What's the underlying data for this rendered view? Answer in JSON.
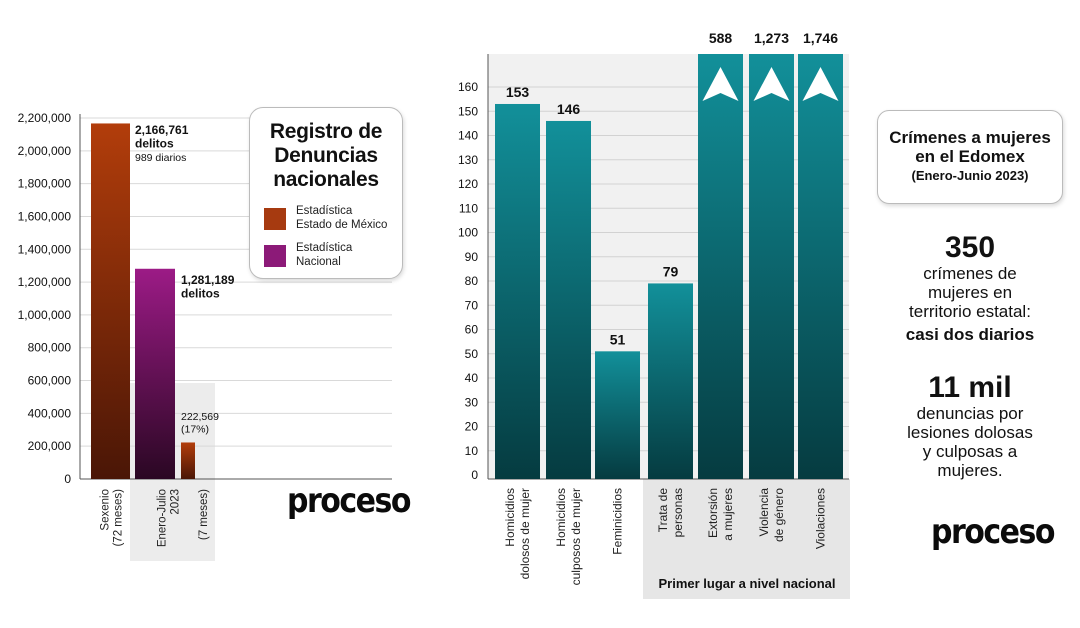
{
  "legend": {
    "title_lines": [
      "Registro de",
      "Denuncias",
      "nacionales"
    ],
    "items": [
      {
        "label_lines": [
          "Estadística",
          "Estado de México"
        ],
        "color": "#a63a10"
      },
      {
        "label_lines": [
          "Estadística",
          "Nacional"
        ],
        "color": "#8c1a78"
      }
    ]
  },
  "info_box": {
    "title_lines": [
      "Crímenes a mujeres",
      "en el Edomex"
    ],
    "subtitle": "(Enero-Junio 2023)"
  },
  "stats": [
    {
      "big": "350",
      "text_lines": [
        "crímenes de",
        "mujeres en",
        "territorio estatal:"
      ],
      "strong": "casi dos diarios"
    },
    {
      "big": "11 mil",
      "text_lines": [
        "denuncias por",
        "lesiones dolosas",
        "y culposas a",
        "mujeres."
      ]
    }
  ],
  "brand": {
    "logo_left": "proceso",
    "logo_right": "proceso"
  },
  "chart_data": [
    {
      "type": "bar",
      "title": "",
      "ylim": [
        0,
        2200000
      ],
      "yticks": [
        0,
        200000,
        400000,
        600000,
        800000,
        1000000,
        1200000,
        1400000,
        1600000,
        1800000,
        2000000,
        2200000
      ],
      "ytick_labels": [
        "0",
        "200,000",
        "400,000",
        "600,000",
        "800,000",
        "1,000,000",
        "1,200,000",
        "1,400,000",
        "1,600,000",
        "1,800,000",
        "2,000,000",
        "2,200,000"
      ],
      "grid": true,
      "categories": [
        {
          "label_lines": [
            "Sexenio",
            "(72 meses)"
          ]
        },
        {
          "label_lines": [
            "Enero-Julio",
            "2023"
          ]
        },
        {
          "label_lines": [
            "(7 meses)"
          ]
        }
      ],
      "bars": [
        {
          "value": 2166761,
          "series": "Estadística Estado de México",
          "color": "#a63a10",
          "label_lines": [
            "2,166,761",
            "delitos",
            "989 diarios"
          ]
        },
        {
          "value": 1281189,
          "series": "Estadística Nacional",
          "color": "#8c1a78",
          "label_lines": [
            "1,281,189",
            "delitos"
          ]
        },
        {
          "value": 222569,
          "series": "Estadística Estado de México",
          "color": "#a63a10",
          "label_lines": [
            "222,569",
            "(17%)"
          ]
        }
      ]
    },
    {
      "type": "bar",
      "title": "",
      "ylim": [
        0,
        165
      ],
      "yticks": [
        0,
        10,
        20,
        30,
        40,
        50,
        60,
        70,
        80,
        90,
        100,
        110,
        120,
        130,
        140,
        150,
        160
      ],
      "grid": true,
      "color": "#0e8c8c",
      "categories": [
        {
          "label_lines": [
            "Homicidios",
            "dolosos de mujer"
          ]
        },
        {
          "label_lines": [
            "Homicidios",
            "culposos de mujer"
          ]
        },
        {
          "label_lines": [
            "Feminicidios"
          ]
        },
        {
          "label_lines": [
            "Trata de",
            "personas"
          ]
        },
        {
          "label_lines": [
            "Extorsión",
            "a mujeres"
          ]
        },
        {
          "label_lines": [
            "Violencia",
            "de género"
          ]
        },
        {
          "label_lines": [
            "Violaciones"
          ]
        }
      ],
      "values": [
        153,
        146,
        51,
        79,
        588,
        1273,
        1746
      ],
      "value_labels": [
        "153",
        "146",
        "51",
        "79",
        "588",
        "1,273",
        "1,746"
      ],
      "off_scale_categories": [
        "Extorsión a mujeres",
        "Violencia de género",
        "Violaciones"
      ],
      "group_annotation": "Primer lugar a nivel nacional"
    }
  ]
}
